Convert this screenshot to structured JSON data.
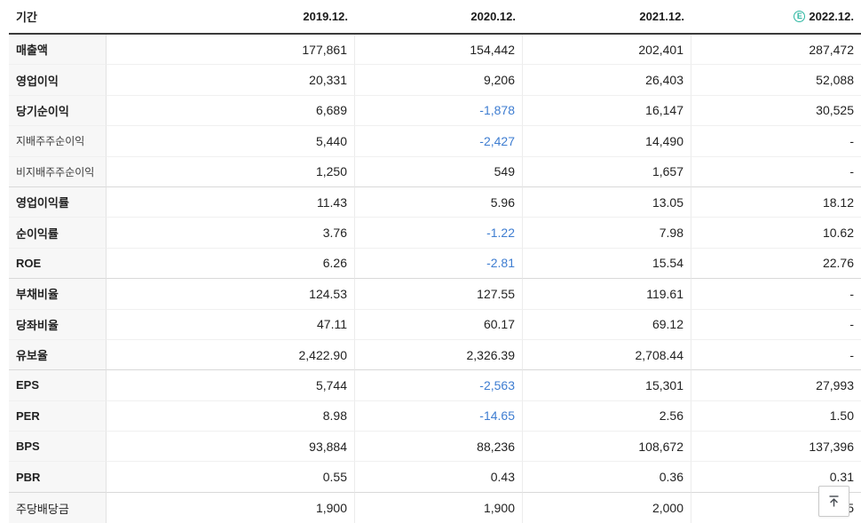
{
  "colors": {
    "negative_value": "#3e7dd1",
    "estimate_accent": "#2bb6a0",
    "header_border": "#3b3b3b",
    "label_column_bg": "#f7f7f7"
  },
  "table": {
    "period_header": "기간",
    "columns": [
      {
        "label": "2019.12."
      },
      {
        "label": "2020.12."
      },
      {
        "label": "2021.12."
      },
      {
        "label": "2022.12.",
        "estimate_icon": "E"
      }
    ],
    "rows": [
      {
        "label": "매출액",
        "values": [
          "177,861",
          "154,442",
          "202,401",
          "287,472"
        ]
      },
      {
        "label": "영업이익",
        "values": [
          "20,331",
          "9,206",
          "26,403",
          "52,088"
        ]
      },
      {
        "label": "당기순이익",
        "values": [
          "6,689",
          "-1,878",
          "16,147",
          "30,525"
        ]
      },
      {
        "label": "지배주주순이익",
        "sub": true,
        "values": [
          "5,440",
          "-2,427",
          "14,490",
          "-"
        ]
      },
      {
        "label": "비지배주주순이익",
        "sub": true,
        "group_end": true,
        "values": [
          "1,250",
          "549",
          "1,657",
          "-"
        ]
      },
      {
        "label": "영업이익률",
        "values": [
          "11.43",
          "5.96",
          "13.05",
          "18.12"
        ]
      },
      {
        "label": "순이익률",
        "values": [
          "3.76",
          "-1.22",
          "7.98",
          "10.62"
        ]
      },
      {
        "label": "ROE",
        "group_end": true,
        "values": [
          "6.26",
          "-2.81",
          "15.54",
          "22.76"
        ]
      },
      {
        "label": "부채비율",
        "values": [
          "124.53",
          "127.55",
          "119.61",
          "-"
        ]
      },
      {
        "label": "당좌비율",
        "values": [
          "47.11",
          "60.17",
          "69.12",
          "-"
        ]
      },
      {
        "label": "유보율",
        "group_end": true,
        "values": [
          "2,422.90",
          "2,326.39",
          "2,708.44",
          "-"
        ]
      },
      {
        "label": "EPS",
        "values": [
          "5,744",
          "-2,563",
          "15,301",
          "27,993"
        ]
      },
      {
        "label": "PER",
        "values": [
          "8.98",
          "-14.65",
          "2.56",
          "1.50"
        ]
      },
      {
        "label": "BPS",
        "values": [
          "93,884",
          "88,236",
          "108,672",
          "137,396"
        ]
      },
      {
        "label": "PBR",
        "group_end": true,
        "values": [
          "0.55",
          "0.43",
          "0.36",
          "0.31"
        ]
      },
      {
        "label": "주당배당금",
        "plain": true,
        "values": [
          "1,900",
          "1,900",
          "2,000",
          "5"
        ]
      }
    ]
  },
  "scroll_top_button": {
    "icon": "arrow-up-to-top"
  }
}
